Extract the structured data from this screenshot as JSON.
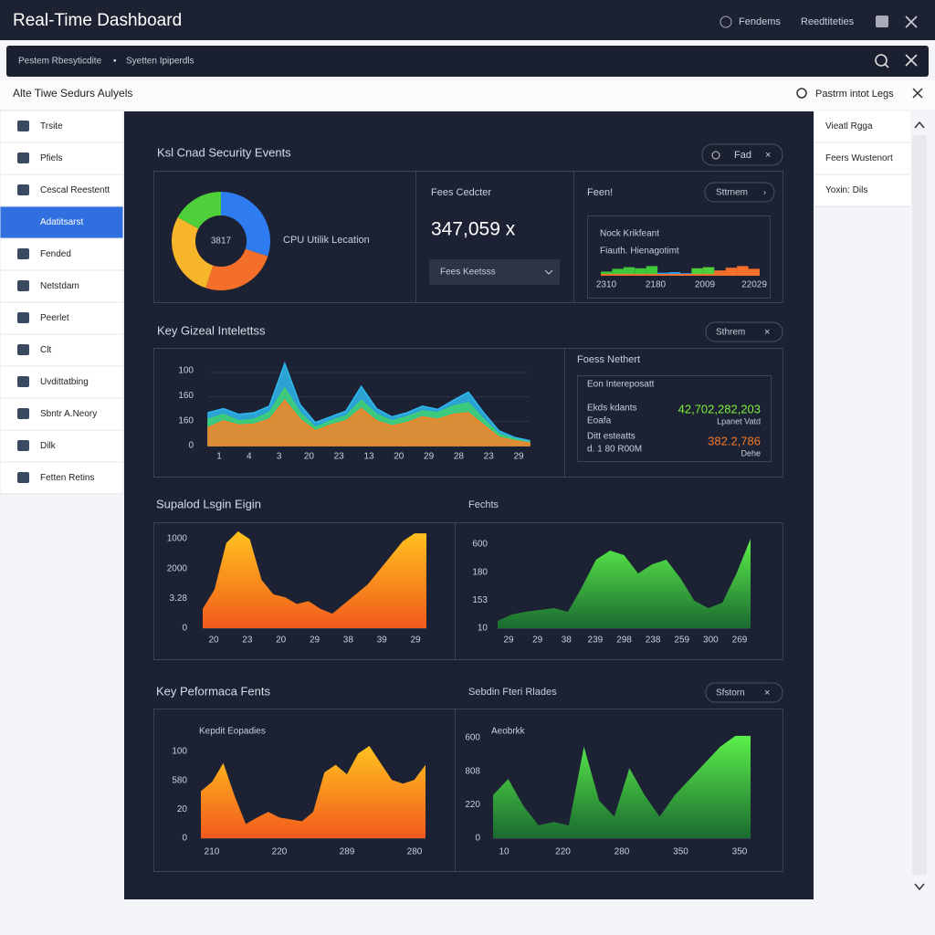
{
  "header": {
    "title": "Real-Time Dashboard",
    "links": [
      "Fendems",
      "Reedtiteties"
    ]
  },
  "search": {
    "items": [
      "Pestem Rbesyticdite",
      "Syetten Ipiperdls"
    ]
  },
  "subheader": {
    "title": "Alte Tiwe Sedurs Aulyels",
    "action": "Pastrm intot Legs"
  },
  "sidebar": {
    "active": 3,
    "items": [
      "Trsite",
      "Pfiels",
      "Cescal Reestentt",
      "Adatitsarst",
      "Fended",
      "Netstdam",
      "Peerlet",
      "Clt",
      "Uvdittatbing",
      "Sbntr A.Neory",
      "Dilk",
      "Fetten Retins"
    ]
  },
  "right_panel": {
    "items": [
      "Vieatl Rgga",
      "Feers Wustenort",
      "Yoxin: Dils"
    ]
  },
  "section1": {
    "title": "Ksl Cnad Security Events",
    "button": "Fad",
    "donut_label": "CPU Utilik Lecation",
    "stat_title": "Fees Cedcter",
    "stat_value": "347,059 x",
    "dropdown": "Fees Keetsss",
    "panel_title": "Feen!",
    "panel_button": "Sttrnem",
    "inner_title": "Nock Krikfeant",
    "inner_subtitle": "Fiauth. Hienagotimt"
  },
  "section2": {
    "title": "Key Gizeal Intelettss",
    "button": "Sthrem",
    "panel_title": "Foess Nethert",
    "inner_title": "Eon Intereposatt",
    "row1_label_a": "Ekds kdants",
    "row1_label_b": "Eoafa",
    "row1_value": "42,702,282,203",
    "row1_unit": "Lpanet Vatd",
    "row2_label_a": "Ditt esteatts",
    "row2_label_b": "d. 1 80 R00M",
    "row2_value": "382.2,786",
    "row2_unit": "Dehe"
  },
  "section3": {
    "title": "Supalod Lsgin Eigin",
    "title2": "Fechts"
  },
  "section4": {
    "title": "Key Peformaca Fents",
    "title2": "Sebdin Fteri Rlades",
    "button": "Sfstorn"
  },
  "chart_data": [
    {
      "type": "pie",
      "center_label": "3817",
      "values": [
        30,
        25,
        28,
        17
      ],
      "colors": [
        "#2f7cf0",
        "#f4702a",
        "#f7b52a",
        "#4fcf3a"
      ]
    },
    {
      "type": "bar",
      "ylim": [
        0,
        100
      ],
      "values": [
        30,
        55,
        70,
        60,
        80,
        20,
        25,
        15,
        60,
        70,
        40,
        65,
        80,
        55
      ],
      "colors": [
        "#3fc83a",
        "#3fc83a",
        "#3fc83a",
        "#3fc83a",
        "#3fc83a",
        "#2f9cf0",
        "#2f9cf0",
        "#2f9cf0",
        "#4fcf3a",
        "#4fcf3a",
        "#f4702a",
        "#f4702a",
        "#f4702a",
        "#f4702a"
      ],
      "x_labels": [
        "2310",
        "2180",
        "2009",
        "22029"
      ]
    },
    {
      "type": "area",
      "ylim": [
        0,
        100
      ],
      "series": [
        {
          "color": "#2fb8f0",
          "values": [
            40,
            45,
            38,
            40,
            48,
            100,
            50,
            28,
            35,
            42,
            72,
            45,
            35,
            40,
            48,
            44,
            55,
            65,
            40,
            18,
            10,
            6
          ]
        },
        {
          "color": "#3fd070",
          "values": [
            32,
            38,
            30,
            32,
            40,
            70,
            40,
            22,
            30,
            36,
            55,
            38,
            30,
            35,
            42,
            40,
            48,
            52,
            32,
            14,
            8,
            4
          ]
        },
        {
          "color": "#f4822a",
          "values": [
            22,
            30,
            25,
            26,
            32,
            55,
            32,
            18,
            25,
            30,
            45,
            30,
            24,
            28,
            35,
            32,
            38,
            40,
            25,
            10,
            6,
            3
          ]
        }
      ],
      "y_labels": [
        "100",
        "160",
        "160",
        "0"
      ],
      "x_labels": [
        "1",
        "4",
        "3",
        "20",
        "23",
        "13",
        "20",
        "29",
        "28",
        "23",
        "29"
      ]
    },
    {
      "type": "area",
      "ylim": [
        0,
        100
      ],
      "series": [
        {
          "color": "orange",
          "values": [
            20,
            40,
            88,
            100,
            92,
            50,
            35,
            32,
            25,
            28,
            20,
            15,
            25,
            35,
            45,
            60,
            75,
            90,
            98,
            98
          ]
        }
      ],
      "y_labels": [
        "1000",
        "2000",
        "3.28",
        "0"
      ],
      "x_labels": [
        "20",
        "23",
        "20",
        "29",
        "38",
        "39",
        "29"
      ]
    },
    {
      "type": "area",
      "ylim": [
        0,
        100
      ],
      "series": [
        {
          "color": "green",
          "values": [
            8,
            15,
            18,
            20,
            22,
            18,
            45,
            75,
            85,
            80,
            60,
            70,
            75,
            55,
            30,
            22,
            28,
            60,
            98
          ]
        }
      ],
      "y_labels": [
        "600",
        "180",
        "153",
        "10"
      ],
      "x_labels": [
        "29",
        "29",
        "38",
        "239",
        "298",
        "238",
        "259",
        "300",
        "269"
      ]
    },
    {
      "type": "area",
      "ylim": [
        0,
        100
      ],
      "series": [
        {
          "color": "orange",
          "values": [
            50,
            60,
            80,
            45,
            15,
            22,
            28,
            22,
            20,
            18,
            28,
            70,
            78,
            68,
            90,
            98,
            80,
            62,
            58,
            62,
            78
          ]
        }
      ],
      "subtitle": "Kepdit Eopadies",
      "y_labels": [
        "100",
        "580",
        "20",
        "0"
      ],
      "x_labels": [
        "210",
        "220",
        "289",
        "280"
      ]
    },
    {
      "type": "area",
      "ylim": [
        0,
        100
      ],
      "series": [
        {
          "color": "green",
          "values": [
            40,
            55,
            30,
            12,
            15,
            12,
            85,
            35,
            20,
            65,
            40,
            20,
            40,
            55,
            70,
            85,
            95,
            95
          ]
        }
      ],
      "subtitle": "Aeobrkk",
      "y_labels": [
        "600",
        "808",
        "220",
        "0"
      ],
      "x_labels": [
        "10",
        "220",
        "280",
        "350",
        "350"
      ]
    }
  ]
}
